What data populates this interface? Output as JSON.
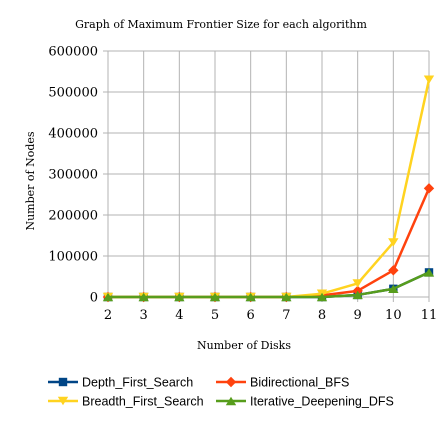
{
  "chart_data": {
    "type": "line",
    "title": "Graph of Maximum Frontier Size for each algorithm",
    "xlabel": "Number of Disks",
    "ylabel": "Number of Nodes",
    "categories": [
      "2",
      "3",
      "4",
      "5",
      "6",
      "7",
      "8",
      "9",
      "10",
      "11"
    ],
    "yticks": [
      "0",
      "100000",
      "200000",
      "300000",
      "400000",
      "500000",
      "600000"
    ],
    "ylim": [
      0,
      600000
    ],
    "grid": true,
    "legend": "bottom",
    "series": [
      {
        "name": "Depth_First_Search",
        "color": "#004586",
        "marker": "square",
        "values": [
          0,
          0,
          0,
          0,
          0,
          0,
          0,
          5000,
          20000,
          60000
        ]
      },
      {
        "name": "Bidirectional_BFS",
        "color": "#ff420e",
        "marker": "diamond",
        "values": [
          0,
          0,
          0,
          0,
          0,
          0,
          4000,
          15000,
          65000,
          265000
        ]
      },
      {
        "name": "Breadth_First_Search",
        "color": "#ffd320",
        "marker": "triangle-down",
        "values": [
          0,
          0,
          0,
          0,
          0,
          0,
          8000,
          33000,
          133000,
          530000
        ]
      },
      {
        "name": "Iterative_Deepening_DFS",
        "color": "#579d1c",
        "marker": "triangle-up",
        "values": [
          0,
          0,
          0,
          0,
          0,
          0,
          0,
          5000,
          20000,
          60000
        ]
      }
    ]
  }
}
